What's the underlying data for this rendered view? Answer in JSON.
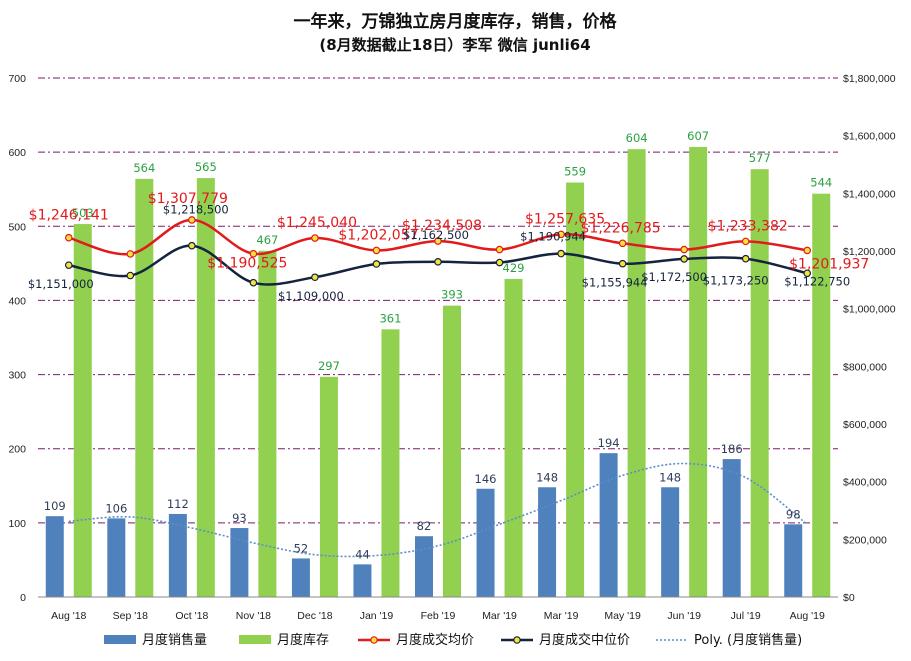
{
  "chart_data": {
    "type": "bar+line",
    "title": "一年来，万锦独立房月度库存，销售，价格",
    "subtitle": "(8月数据截止18日）李军 微信 junli64",
    "categories": [
      "Aug '18",
      "Sep '18",
      "Oct '18",
      "Nov '18",
      "Dec '18",
      "Jan '19",
      "Feb '19",
      "Mar '19",
      "Mar '19",
      "May '19",
      "Jun '19",
      "Jul '19",
      "Aug '19"
    ],
    "left_axis": {
      "min": 0,
      "max": 700,
      "step": 100,
      "ticks": [
        "0",
        "100",
        "200",
        "300",
        "400",
        "500",
        "600",
        "700"
      ]
    },
    "right_axis": {
      "min": 0,
      "max": 1800000,
      "step": 200000,
      "ticks": [
        "$0",
        "$200,000",
        "$400,000",
        "$600,000",
        "$800,000",
        "$1,000,000",
        "$1,200,000",
        "$1,400,000",
        "$1,600,000",
        "$1,800,000"
      ]
    },
    "series": [
      {
        "name": "月度销售量",
        "type": "bar",
        "axis": "left",
        "color": "#4F81BD",
        "values": [
          109,
          106,
          112,
          93,
          52,
          44,
          82,
          146,
          148,
          194,
          148,
          186,
          98
        ],
        "labels": [
          "109",
          "106",
          "112",
          "93",
          "52",
          "44",
          "82",
          "146",
          "148",
          "194",
          "148",
          "186",
          "98"
        ]
      },
      {
        "name": "月度库存",
        "type": "bar",
        "axis": "left",
        "color": "#92D050",
        "values": [
          503,
          564,
          565,
          467,
          297,
          361,
          393,
          429,
          559,
          604,
          607,
          577,
          544
        ],
        "labels": [
          "503",
          "564",
          "565",
          "467",
          "297",
          "361",
          "393",
          "429",
          "559",
          "604",
          "607",
          "577",
          "544"
        ]
      },
      {
        "name": "月度成交均价",
        "type": "line",
        "axis": "right",
        "color": "#E31A1C",
        "values": [
          1246141,
          1190000,
          1307779,
          1190525,
          1245040,
          1202057,
          1234508,
          1205000,
          1257635,
          1226785,
          1205000,
          1233382,
          1201937
        ],
        "labels": [
          "$1,246,141",
          "",
          "$1,307,779",
          "$1,190,525",
          "$1,245,040",
          "$1,202,057",
          "$1,234,508",
          "",
          "$1,257,635",
          "$1,226,785",
          "",
          "$1,233,382",
          "$1,201,937"
        ]
      },
      {
        "name": "月度成交中位价",
        "type": "line",
        "axis": "right",
        "color": "#14233F",
        "values": [
          1151000,
          1115000,
          1218500,
          1090000,
          1109000,
          1155000,
          1162500,
          1160000,
          1190944,
          1155944,
          1172500,
          1173250,
          1122750
        ],
        "labels": [
          "$1,151,000",
          "",
          "$1,218,500",
          "",
          "$1,109,000",
          "",
          "$1,162,500",
          "",
          "$1,190,944",
          "$1,155,944",
          "$1,172,500",
          "$1,173,250",
          "$1,122,750"
        ]
      },
      {
        "name": "Poly. (月度销售量)",
        "type": "trendline",
        "axis": "left",
        "color": "#4F81BD",
        "values": [
          102,
          108,
          93,
          73,
          57,
          56,
          69,
          98,
          130,
          164,
          180,
          161,
          98
        ]
      }
    ]
  }
}
